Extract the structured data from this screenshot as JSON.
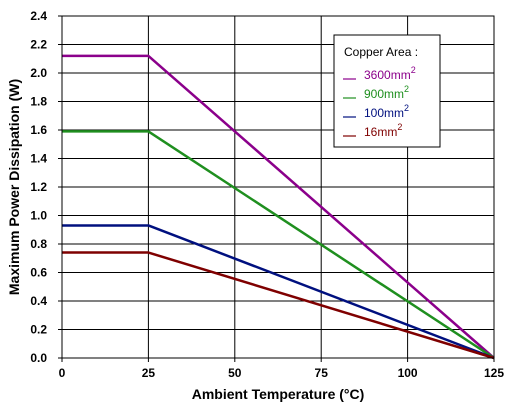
{
  "chart_data": {
    "type": "line",
    "xlabel": "Ambient Temperature (°C)",
    "ylabel": "Maximum Power Dissipation (W)",
    "xlim": [
      0,
      125
    ],
    "ylim": [
      0,
      2.4
    ],
    "xticks": [
      0,
      25,
      50,
      75,
      100,
      125
    ],
    "yticks": [
      0.0,
      0.2,
      0.4,
      0.6,
      0.8,
      1.0,
      1.2,
      1.4,
      1.6,
      1.8,
      2.0,
      2.2,
      2.4
    ],
    "xtick_labels": [
      "0",
      "25",
      "50",
      "75",
      "100",
      "125"
    ],
    "ytick_labels": [
      "0.0",
      "0.2",
      "0.4",
      "0.6",
      "0.8",
      "1.0",
      "1.2",
      "1.4",
      "1.6",
      "1.8",
      "2.0",
      "2.2",
      "2.4"
    ],
    "grid": true,
    "legend": {
      "placement": "top-right",
      "title": "Copper Area :"
    },
    "series": [
      {
        "name": "3600mm",
        "superscript": "2",
        "color": "#8b008b",
        "x": [
          0,
          25,
          125
        ],
        "y": [
          2.12,
          2.12,
          0
        ]
      },
      {
        "name": "900mm",
        "superscript": "2",
        "color": "#1f8f1f",
        "x": [
          0,
          25,
          125
        ],
        "y": [
          1.59,
          1.59,
          0
        ]
      },
      {
        "name": "100mm",
        "superscript": "2",
        "color": "#00107f",
        "x": [
          0,
          25,
          125
        ],
        "y": [
          0.93,
          0.93,
          0
        ]
      },
      {
        "name": "16mm",
        "superscript": "2",
        "color": "#7f0000",
        "x": [
          0,
          25,
          125
        ],
        "y": [
          0.74,
          0.74,
          0
        ]
      }
    ]
  }
}
